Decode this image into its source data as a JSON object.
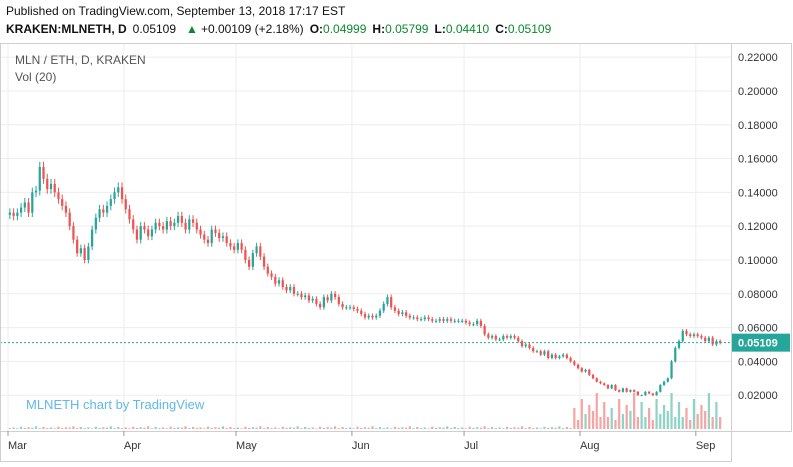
{
  "header": {
    "published": "Published on TradingView.com, September 13, 2018 17:17 EST",
    "symbol": "KRAKEN:MLNETH, D",
    "last": "0.05109",
    "change": "+0.00109 (+2.18%)",
    "o_label": "O:",
    "o_value": "0.04999",
    "h_label": "H:",
    "h_value": "0.05799",
    "l_label": "L:",
    "l_value": "0.04410",
    "c_label": "C:",
    "c_value": "0.05109"
  },
  "chart_data": {
    "type": "candlestick",
    "title": "MLN / ETH, D, KRAKEN",
    "volume_label": "Vol (20)",
    "watermark": "MLNETH chart by TradingView",
    "x_tick_labels": [
      "Mar",
      "Apr",
      "May",
      "Jun",
      "Jul",
      "Aug",
      "Sep"
    ],
    "y_tick_labels": [
      "0.02000",
      "0.04000",
      "0.06000",
      "0.08000",
      "0.10000",
      "0.12000",
      "0.14000",
      "0.16000",
      "0.18000",
      "0.20000",
      "0.22000"
    ],
    "ylim": [
      0.0,
      0.226
    ],
    "last_price": 0.05109,
    "last_price_label": "0.05109",
    "colors": {
      "up": "#26a69a",
      "down": "#ef5350",
      "vol_up": "#8fd3c6",
      "vol_down": "#f4a6a4",
      "last": "#26a69a"
    },
    "months_days": [
      {
        "month": "Mar",
        "day": 0
      },
      {
        "month": "Apr",
        "day": 31
      },
      {
        "month": "May",
        "day": 61
      },
      {
        "month": "Jun",
        "day": 92
      },
      {
        "month": "Jul",
        "day": 122
      },
      {
        "month": "Aug",
        "day": 153
      },
      {
        "month": "Sep",
        "day": 184
      }
    ],
    "close_series": [
      0.128,
      0.126,
      0.128,
      0.131,
      0.134,
      0.128,
      0.14,
      0.141,
      0.155,
      0.148,
      0.142,
      0.145,
      0.14,
      0.136,
      0.132,
      0.128,
      0.12,
      0.112,
      0.104,
      0.107,
      0.1,
      0.108,
      0.118,
      0.125,
      0.13,
      0.128,
      0.132,
      0.136,
      0.14,
      0.143,
      0.136,
      0.13,
      0.124,
      0.118,
      0.112,
      0.12,
      0.118,
      0.114,
      0.118,
      0.122,
      0.12,
      0.118,
      0.123,
      0.12,
      0.122,
      0.126,
      0.122,
      0.118,
      0.124,
      0.122,
      0.118,
      0.115,
      0.112,
      0.11,
      0.118,
      0.116,
      0.113,
      0.114,
      0.11,
      0.108,
      0.106,
      0.11,
      0.106,
      0.1,
      0.096,
      0.104,
      0.108,
      0.102,
      0.096,
      0.092,
      0.09,
      0.086,
      0.088,
      0.084,
      0.082,
      0.084,
      0.08,
      0.08,
      0.078,
      0.079,
      0.076,
      0.077,
      0.074,
      0.072,
      0.078,
      0.076,
      0.08,
      0.078,
      0.074,
      0.072,
      0.072,
      0.072,
      0.071,
      0.07,
      0.068,
      0.066,
      0.067,
      0.066,
      0.067,
      0.07,
      0.074,
      0.078,
      0.072,
      0.07,
      0.068,
      0.069,
      0.067,
      0.066,
      0.066,
      0.065,
      0.065,
      0.066,
      0.065,
      0.064,
      0.064,
      0.065,
      0.064,
      0.065,
      0.064,
      0.064,
      0.064,
      0.064,
      0.063,
      0.062,
      0.062,
      0.064,
      0.061,
      0.056,
      0.054,
      0.055,
      0.053,
      0.053,
      0.055,
      0.054,
      0.055,
      0.054,
      0.052,
      0.049,
      0.05,
      0.048,
      0.046,
      0.046,
      0.044,
      0.046,
      0.042,
      0.044,
      0.042,
      0.043,
      0.044,
      0.042,
      0.04,
      0.038,
      0.036,
      0.034,
      0.035,
      0.032,
      0.03,
      0.028,
      0.027,
      0.026,
      0.024,
      0.026,
      0.023,
      0.022,
      0.024,
      0.022,
      0.023,
      0.022,
      0.02,
      0.02,
      0.022,
      0.021,
      0.02,
      0.022,
      0.026,
      0.028,
      0.03,
      0.04,
      0.048,
      0.052,
      0.058,
      0.056,
      0.055,
      0.056,
      0.055,
      0.054,
      0.052,
      0.054,
      0.05,
      0.052,
      0.051
    ]
  },
  "icons": {
    "up_triangle": "up-triangle-icon"
  }
}
